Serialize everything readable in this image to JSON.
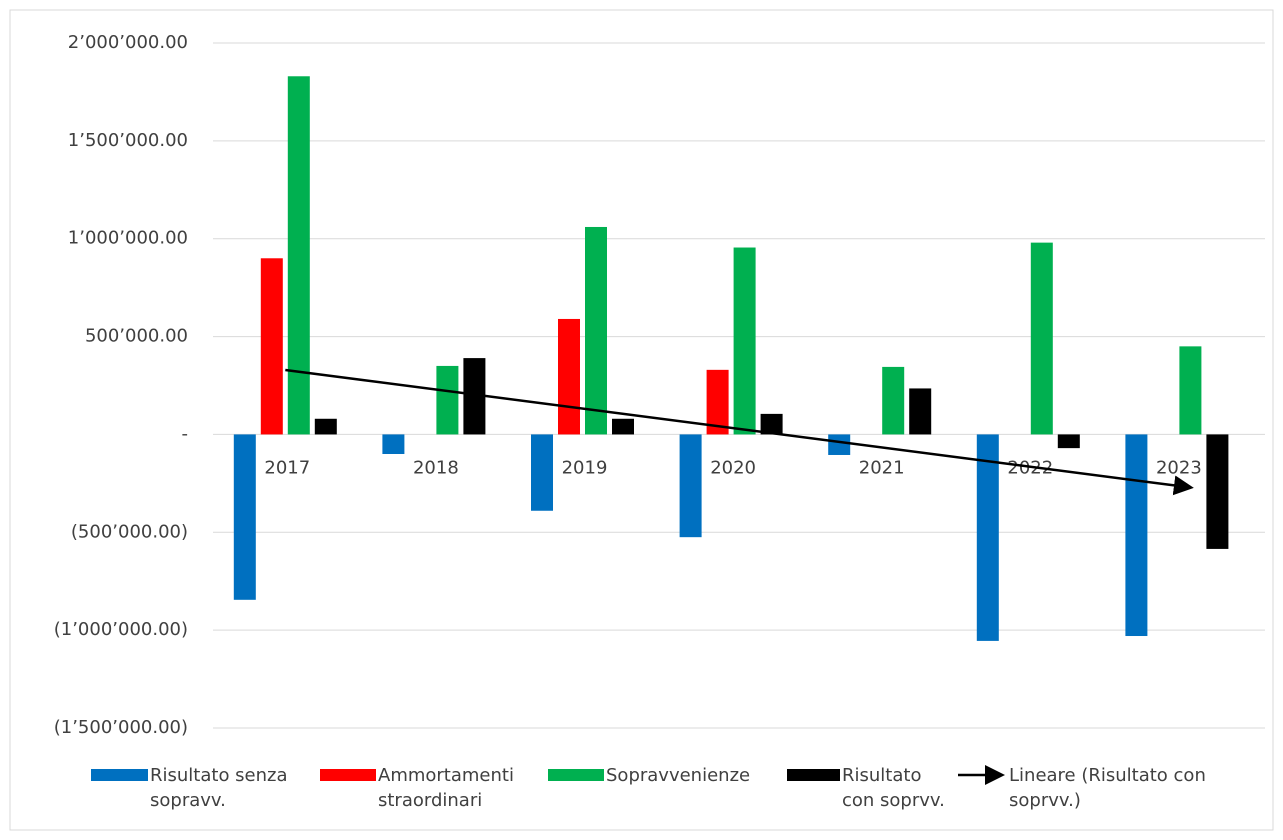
{
  "chart_data": {
    "type": "bar",
    "categories": [
      "2017",
      "2018",
      "2019",
      "2020",
      "2021",
      "2022",
      "2023"
    ],
    "series": [
      {
        "name": "Risultato senza sopravv.",
        "color": "#0070c0",
        "values": [
          -845000,
          -100000,
          -390000,
          -525000,
          -105000,
          -1055000,
          -1030000
        ]
      },
      {
        "name": "Ammortamenti straordinari",
        "color": "#ff0000",
        "values": [
          900000,
          null,
          590000,
          330000,
          null,
          null,
          null
        ]
      },
      {
        "name": "Sopravvenienze",
        "color": "#00b050",
        "values": [
          1830000,
          350000,
          1060000,
          955000,
          345000,
          980000,
          450000
        ]
      },
      {
        "name": "Risultato con soprvv.",
        "color": "#000000",
        "values": [
          80000,
          390000,
          80000,
          105000,
          235000,
          -70000,
          -585000
        ]
      }
    ],
    "trendline": {
      "name": "Lineare (Risultato con soprvv.)",
      "series": 3,
      "type": "linear",
      "color": "#000000"
    },
    "ylim": [
      -1500000,
      2000000
    ],
    "yticks": [
      {
        "value": -1500000,
        "label": "(1’500’000.00)"
      },
      {
        "value": -1000000,
        "label": "(1’000’000.00)"
      },
      {
        "value": -500000,
        "label": "(500’000.00)"
      },
      {
        "value": 0,
        "label": "-"
      },
      {
        "value": 500000,
        "label": "500’000.00"
      },
      {
        "value": 1000000,
        "label": "1’000’000.00"
      },
      {
        "value": 1500000,
        "label": "1’500’000.00"
      },
      {
        "value": 2000000,
        "label": "2’000’000.00"
      }
    ],
    "grid": true,
    "legend": "bottom"
  }
}
